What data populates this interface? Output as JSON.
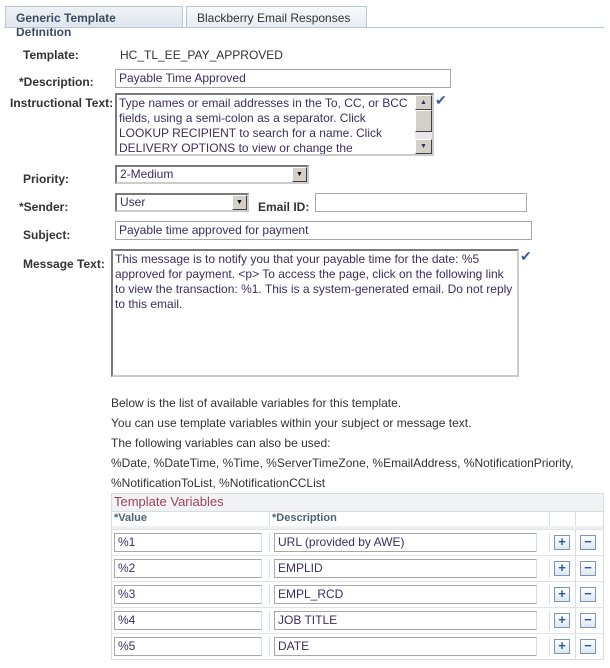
{
  "tabs": [
    {
      "label": "Generic Template Definition",
      "active": true
    },
    {
      "label": "Blackberry Email Responses",
      "active": false
    }
  ],
  "form": {
    "template_label": "Template:",
    "template_value": "HC_TL_EE_PAY_APPROVED",
    "description_label": "*Description:",
    "description_value": "Payable Time Approved",
    "instructional_label": "Instructional Text:",
    "instructional_value": "Type names or email addresses in the To, CC, or BCC fields, using a semi-colon as a separator. Click LOOKUP RECIPIENT to search for a name. Click DELIVERY OPTIONS to view or change the",
    "priority_label": "Priority:",
    "priority_value": "2-Medium",
    "sender_label": "*Sender:",
    "sender_value": "User",
    "email_id_label": "Email ID:",
    "email_id_value": "",
    "subject_label": "Subject:",
    "subject_value": "Payable time approved for payment",
    "message_label": "Message Text:",
    "message_value": "This message is to notify you that your payable time for the date: %5 approved for payment. <p> To access the page, click on the following link to view the transaction: %1. This is a system-generated email. Do not reply to this email."
  },
  "info": [
    "Below is the list of available variables for this template.",
    "You can use template variables within your subject or message text.",
    "The following variables can also be used:",
    "%Date, %DateTime, %Time, %ServerTimeZone, %EmailAddress, %NotificationPriority,",
    "%NotificationToList, %NotificationCCList"
  ],
  "grid": {
    "title": "Template Variables",
    "col_value": "*Value",
    "col_description": "*Description",
    "rows": [
      {
        "value": "%1",
        "description": "URL (provided by AWE)"
      },
      {
        "value": "%2",
        "description": "EMPLID"
      },
      {
        "value": "%3",
        "description": "EMPL_RCD"
      },
      {
        "value": "%4",
        "description": "JOB TITLE"
      },
      {
        "value": "%5",
        "description": "DATE"
      }
    ],
    "add_label": "+",
    "delete_label": "−"
  },
  "icons": {
    "spell_check": "spell-check-icon",
    "dropdown": "chevron-down-icon"
  },
  "colors": {
    "grid_title": "#a0445c",
    "header_text": "#4d6278",
    "input_text": "#3c2e5e"
  }
}
